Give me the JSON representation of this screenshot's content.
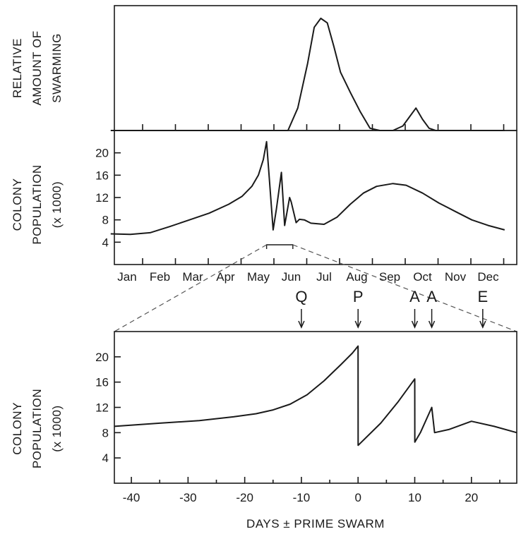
{
  "chart_data": [
    {
      "id": "swarming",
      "type": "line",
      "ylabel": [
        "RELATIVE",
        "AMOUNT OF",
        "SWARMING"
      ],
      "xlim": [
        0,
        12
      ],
      "ylim": [
        0,
        1
      ],
      "series": [
        {
          "x": [
            0,
            5.4,
            5.7,
            6.0,
            6.2,
            6.4,
            6.6,
            6.8,
            7.0,
            7.3,
            7.6,
            7.9,
            8.2,
            8.6,
            8.9,
            9.1,
            9.3,
            9.5,
            9.7,
            9.9,
            12
          ],
          "y": [
            0,
            0,
            0.2,
            0.6,
            0.92,
            1.0,
            0.96,
            0.75,
            0.52,
            0.34,
            0.17,
            0.02,
            0,
            0,
            0.04,
            0.12,
            0.2,
            0.1,
            0.02,
            0,
            0
          ]
        }
      ]
    },
    {
      "id": "annual",
      "type": "line",
      "ylabel": [
        "COLONY",
        "POPULATION",
        "(x 1000)"
      ],
      "categories": [
        "Jan",
        "Feb",
        "Mar",
        "Apr",
        "May",
        "Jun",
        "Jul",
        "Aug",
        "Sep",
        "Oct",
        "Nov",
        "Dec"
      ],
      "xlim": [
        0,
        12
      ],
      "ylim": [
        0,
        24
      ],
      "yticks": [
        4,
        8,
        12,
        16,
        20
      ],
      "series": [
        {
          "x": [
            0,
            0.6,
            1.2,
            1.8,
            2.4,
            3.0,
            3.6,
            4.0,
            4.3,
            4.5,
            4.65,
            4.75,
            4.95,
            5.05,
            5.2,
            5.3,
            5.45,
            5.5,
            5.65,
            5.75,
            5.9,
            6.1,
            6.5,
            6.9,
            7.3,
            7.7,
            8.1,
            8.6,
            9.0,
            9.5,
            10.0,
            10.5,
            11.0,
            11.5,
            12.0
          ],
          "y": [
            5.5,
            5.4,
            5.7,
            6.8,
            8.0,
            9.2,
            10.8,
            12.2,
            14.0,
            16.0,
            18.8,
            22.0,
            6.2,
            10.0,
            16.5,
            7.0,
            12.0,
            11.2,
            7.5,
            8.1,
            8.0,
            7.4,
            7.2,
            8.5,
            10.8,
            12.8,
            14.0,
            14.5,
            14.2,
            12.8,
            11.0,
            9.5,
            8.0,
            7.0,
            6.2
          ]
        }
      ]
    },
    {
      "id": "detail",
      "type": "line",
      "xlabel": "DAYS ± PRIME SWARM",
      "ylabel": [
        "COLONY",
        "POPULATION",
        "(x 1000)"
      ],
      "xlim": [
        -43,
        28
      ],
      "ylim": [
        0,
        24
      ],
      "xticks": [
        -40,
        -30,
        -20,
        -10,
        0,
        10,
        20
      ],
      "yticks": [
        4,
        8,
        12,
        16,
        20
      ],
      "series": [
        {
          "x": [
            -43,
            -35,
            -28,
            -22,
            -18,
            -15,
            -12,
            -9,
            -6,
            -3,
            -1,
            0,
            0.01,
            4,
            7,
            10,
            10.01,
            11,
            13,
            13.5,
            16,
            20,
            24,
            28
          ],
          "y": [
            9.0,
            9.5,
            9.9,
            10.5,
            11.0,
            11.6,
            12.5,
            14.0,
            16.2,
            18.8,
            20.6,
            21.7,
            6.0,
            9.5,
            12.8,
            16.5,
            6.5,
            8.0,
            12.0,
            8.0,
            8.5,
            9.8,
            9.0,
            8.0
          ]
        }
      ],
      "markers": [
        {
          "label": "Q",
          "x": -10
        },
        {
          "label": "P",
          "x": 0
        },
        {
          "label": "A",
          "x": 10
        },
        {
          "label": "A",
          "x": 13
        },
        {
          "label": "E",
          "x": 22
        }
      ]
    }
  ]
}
